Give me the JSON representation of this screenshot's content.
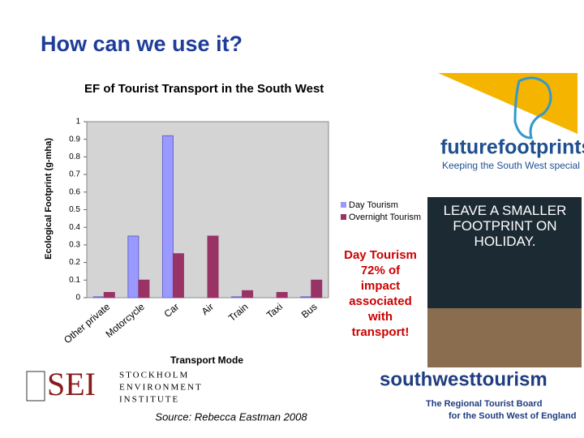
{
  "slide_title": "How can we use it?",
  "chart_data": {
    "type": "bar",
    "title": "EF of Tourist Transport in the South West",
    "x_label": "Transport Mode",
    "y_label": "Ecological Footprint (g-mha)",
    "categories": [
      "Other private",
      "Motorcycle",
      "Car",
      "Air",
      "Train",
      "Taxi",
      "Bus"
    ],
    "series": [
      {
        "name": "Day Tourism",
        "color": "#9999ff",
        "values": [
          0.005,
          0.35,
          0.92,
          0,
          0.005,
          0,
          0.005
        ]
      },
      {
        "name": "Overnight Tourism",
        "color": "#993366",
        "values": [
          0.03,
          0.1,
          0.25,
          0.35,
          0.04,
          0.03,
          0.1
        ]
      }
    ],
    "ylim": [
      0,
      1
    ],
    "yticks": [
      0,
      0.1,
      0.2,
      0.3,
      0.4,
      0.5,
      0.6,
      0.7,
      0.8,
      0.9,
      1
    ],
    "grid": false,
    "legend": "right"
  },
  "annotation": "Day Tourism 72% of impact associated with transport!",
  "source": "Source: Rebecca Eastman 2008",
  "logos": {
    "future_footprints": {
      "name": "futurefootprints",
      "tagline": "Keeping the South West special"
    },
    "poster": "LEAVE A SMALLER FOOTPRINT ON HOLIDAY.",
    "sei": {
      "abbr": "SEI",
      "lines": [
        "STOCKHOLM",
        "ENVIRONMENT",
        "INSTITUTE"
      ]
    },
    "southwest": {
      "name": "southwesttourism",
      "lines": [
        "The Regional Tourist Board",
        "for the South West of England"
      ]
    }
  }
}
